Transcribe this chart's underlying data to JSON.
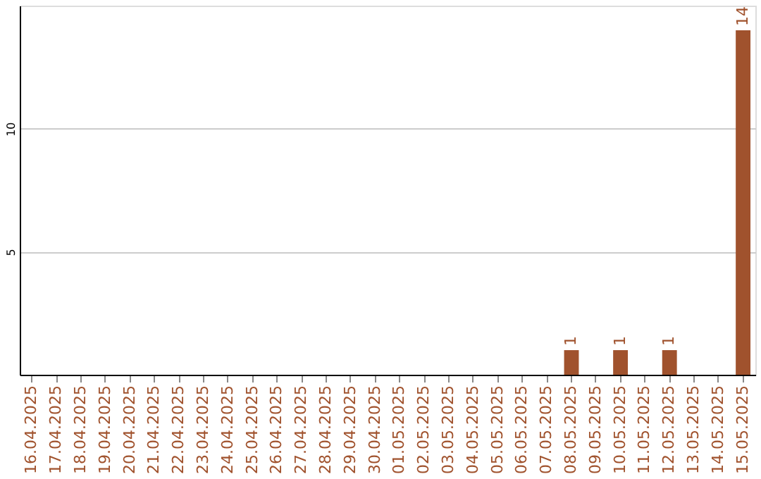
{
  "chart_data": {
    "type": "bar",
    "categories": [
      "16.04.2025",
      "17.04.2025",
      "18.04.2025",
      "19.04.2025",
      "20.04.2025",
      "21.04.2025",
      "22.04.2025",
      "23.04.2025",
      "24.04.2025",
      "25.04.2025",
      "26.04.2025",
      "27.04.2025",
      "28.04.2025",
      "29.04.2025",
      "30.04.2025",
      "01.05.2025",
      "02.05.2025",
      "03.05.2025",
      "04.05.2025",
      "05.05.2025",
      "06.05.2025",
      "07.05.2025",
      "08.05.2025",
      "09.05.2025",
      "10.05.2025",
      "11.05.2025",
      "12.05.2025",
      "13.05.2025",
      "14.05.2025",
      "15.05.2025"
    ],
    "values": [
      0,
      0,
      0,
      0,
      0,
      0,
      0,
      0,
      0,
      0,
      0,
      0,
      0,
      0,
      0,
      0,
      0,
      0,
      0,
      0,
      0,
      0,
      1,
      0,
      1,
      0,
      1,
      0,
      0,
      14
    ],
    "value_labels": [
      null,
      null,
      null,
      null,
      null,
      null,
      null,
      null,
      null,
      null,
      null,
      null,
      null,
      null,
      null,
      null,
      null,
      null,
      null,
      null,
      null,
      null,
      "1",
      null,
      "1",
      null,
      "1",
      null,
      null,
      "14"
    ],
    "color": "#a0522d",
    "ylim": [
      0,
      15
    ],
    "yticks": [
      5,
      10
    ],
    "grid": "y"
  }
}
